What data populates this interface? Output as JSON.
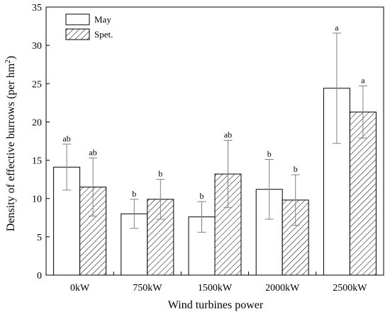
{
  "chart_data": {
    "type": "bar",
    "categories": [
      "0kW",
      "750kW",
      "1500kW",
      "2000kW",
      "2500kW"
    ],
    "series": [
      {
        "name": "May",
        "fill": "#ffffff",
        "pattern": "none",
        "values": [
          14.1,
          8.0,
          7.6,
          11.2,
          24.4
        ],
        "errors": [
          3.0,
          1.9,
          2.0,
          3.9,
          7.2
        ],
        "labels": [
          "ab",
          "b",
          "b",
          "b",
          "a"
        ]
      },
      {
        "name": "Spet.",
        "fill": "#ffffff",
        "pattern": "diagonal-hatch",
        "values": [
          11.5,
          9.9,
          13.2,
          9.8,
          21.3
        ],
        "errors": [
          3.8,
          2.6,
          4.4,
          3.3,
          3.4
        ],
        "labels": [
          "ab",
          "b",
          "ab",
          "b",
          "a"
        ]
      }
    ],
    "xlabel": "Wind turbines power",
    "ylabel": "Density of effective burrows  (per hm²)",
    "ylim": [
      0,
      35
    ],
    "yticks": [
      0,
      5,
      10,
      15,
      20,
      25,
      30,
      35
    ],
    "grid": false,
    "legend_position": "top-left",
    "colors": {
      "bar_stroke": "#000000",
      "error_bar": "#808080",
      "hatch": "#000000"
    }
  }
}
